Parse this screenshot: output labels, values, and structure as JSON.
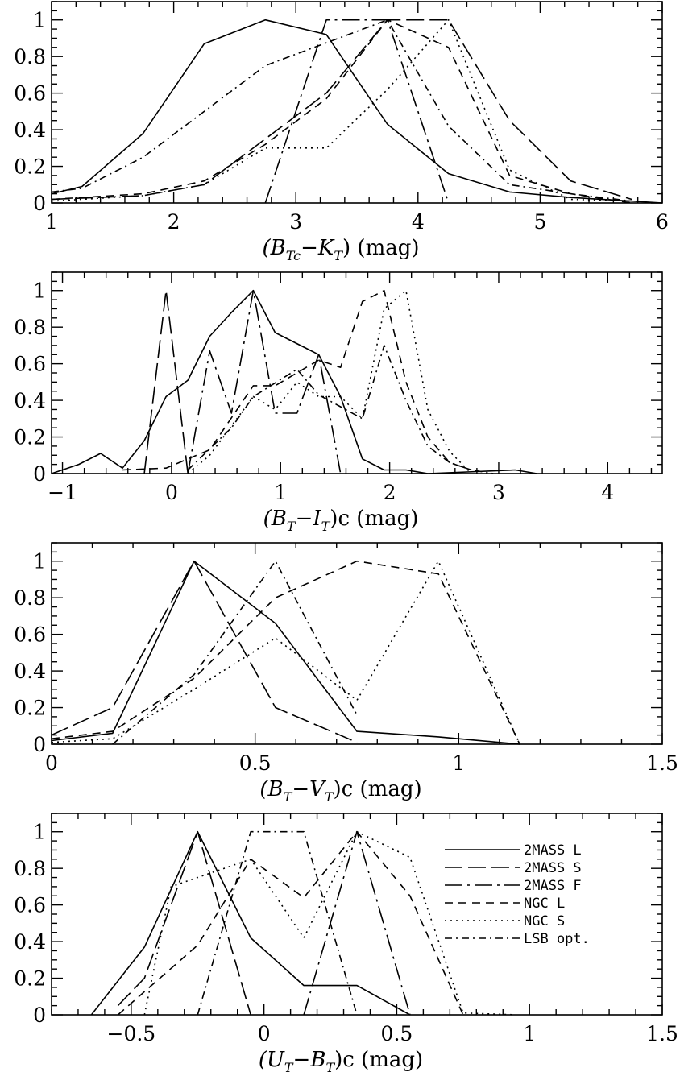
{
  "styles": {
    "2MASS L": "solid",
    "2MASS S": "long-dash",
    "2MASS F": "long-dash-dot",
    "NGC L": "dash",
    "NGC S": "dot",
    "LSB opt.": "dash-dot"
  },
  "legend_labels": [
    "2MASS L",
    "2MASS S",
    "2MASS F",
    "NGC L",
    "NGC S",
    "LSB opt."
  ],
  "chart_data": [
    {
      "type": "line",
      "xlabel_parts": {
        "open": "(B",
        "sub1": "Tc",
        "mid": "−K",
        "sub2": "T",
        "close": ")  (mag)"
      },
      "xlim": [
        1,
        6
      ],
      "ylim": [
        0,
        1.1
      ],
      "xticks": [
        1,
        2,
        3,
        4,
        5,
        6
      ],
      "yticks": [
        0,
        0.2,
        0.4,
        0.6,
        0.8,
        1
      ],
      "ytick_labels": [
        "0",
        "0.2",
        "0.4",
        "0.6",
        "0.8",
        "1"
      ],
      "series": [
        {
          "style": "2MASS L",
          "points": [
            [
              1.0,
              0.05
            ],
            [
              1.25,
              0.09
            ],
            [
              1.75,
              0.38
            ],
            [
              2.25,
              0.87
            ],
            [
              2.75,
              1.0
            ],
            [
              3.25,
              0.92
            ],
            [
              3.75,
              0.43
            ],
            [
              4.25,
              0.16
            ],
            [
              4.75,
              0.06
            ],
            [
              5.25,
              0.03
            ],
            [
              5.75,
              0.01
            ],
            [
              6.0,
              0.0
            ]
          ]
        },
        {
          "style": "2MASS F",
          "points": [
            [
              2.75,
              0.0
            ],
            [
              3.25,
              1.0
            ],
            [
              3.75,
              1.0
            ],
            [
              4.25,
              0.0
            ]
          ]
        },
        {
          "style": "2MASS S",
          "points": [
            [
              1.0,
              0.02
            ],
            [
              1.75,
              0.04
            ],
            [
              2.25,
              0.1
            ],
            [
              2.75,
              0.35
            ],
            [
              3.25,
              0.6
            ],
            [
              3.75,
              1.0
            ],
            [
              4.25,
              1.0
            ],
            [
              4.75,
              0.45
            ],
            [
              5.25,
              0.12
            ],
            [
              5.75,
              0.02
            ]
          ]
        },
        {
          "style": "NGC L",
          "points": [
            [
              1.0,
              0.02
            ],
            [
              1.75,
              0.05
            ],
            [
              2.25,
              0.12
            ],
            [
              2.75,
              0.32
            ],
            [
              3.25,
              0.57
            ],
            [
              3.75,
              1.0
            ],
            [
              4.25,
              0.85
            ],
            [
              4.75,
              0.15
            ],
            [
              5.25,
              0.05
            ],
            [
              5.75,
              0.0
            ]
          ]
        },
        {
          "style": "NGC S",
          "points": [
            [
              1.0,
              0.01
            ],
            [
              1.75,
              0.04
            ],
            [
              2.25,
              0.1
            ],
            [
              2.75,
              0.3
            ],
            [
              3.25,
              0.3
            ],
            [
              3.75,
              0.62
            ],
            [
              4.25,
              1.0
            ],
            [
              4.75,
              0.18
            ],
            [
              5.25,
              0.02
            ],
            [
              5.75,
              0.01
            ]
          ]
        },
        {
          "style": "LSB opt.",
          "points": [
            [
              1.0,
              0.06
            ],
            [
              1.25,
              0.08
            ],
            [
              1.75,
              0.25
            ],
            [
              2.75,
              0.75
            ],
            [
              3.75,
              1.0
            ],
            [
              4.25,
              0.42
            ],
            [
              4.75,
              0.1
            ],
            [
              5.25,
              0.05
            ],
            [
              5.75,
              0.01
            ]
          ]
        }
      ]
    },
    {
      "type": "line",
      "xlabel_parts": {
        "open": "(B",
        "sub1": "T",
        "mid": "−I",
        "sub2": "T",
        "close": ")c  (mag)"
      },
      "xlim": [
        -1.1,
        4.5
      ],
      "ylim": [
        0,
        1.1
      ],
      "xticks": [
        -1,
        0,
        1,
        2,
        3,
        4
      ],
      "xtick_labels": [
        "−1",
        "0",
        "1",
        "2",
        "3",
        "4"
      ],
      "yticks": [
        0,
        0.2,
        0.4,
        0.6,
        0.8,
        1
      ],
      "ytick_labels": [
        "0",
        "0.2",
        "0.4",
        "0.6",
        "0.8",
        "1"
      ],
      "series": [
        {
          "style": "2MASS L",
          "points": [
            [
              -1.1,
              0.0
            ],
            [
              -0.85,
              0.05
            ],
            [
              -0.65,
              0.11
            ],
            [
              -0.45,
              0.03
            ],
            [
              -0.25,
              0.18
            ],
            [
              -0.05,
              0.42
            ],
            [
              0.15,
              0.51
            ],
            [
              0.35,
              0.75
            ],
            [
              0.55,
              0.88
            ],
            [
              0.75,
              1.0
            ],
            [
              0.95,
              0.77
            ],
            [
              1.35,
              0.65
            ],
            [
              1.55,
              0.42
            ],
            [
              1.75,
              0.08
            ],
            [
              1.95,
              0.02
            ],
            [
              2.15,
              0.02
            ],
            [
              2.35,
              0.0
            ],
            [
              3.15,
              0.02
            ],
            [
              3.35,
              0.0
            ]
          ]
        },
        {
          "style": "2MASS S",
          "points": [
            [
              -0.25,
              0.0
            ],
            [
              -0.05,
              1.0
            ],
            [
              0.15,
              0.0
            ]
          ]
        },
        {
          "style": "2MASS F",
          "points": [
            [
              0.15,
              0.0
            ],
            [
              0.35,
              0.67
            ],
            [
              0.55,
              0.33
            ],
            [
              0.75,
              1.0
            ],
            [
              0.95,
              0.33
            ],
            [
              1.15,
              0.33
            ],
            [
              1.35,
              0.65
            ],
            [
              1.55,
              0.0
            ]
          ]
        },
        {
          "style": "NGC L",
          "points": [
            [
              -0.45,
              0.02
            ],
            [
              -0.05,
              0.03
            ],
            [
              0.35,
              0.13
            ],
            [
              0.75,
              0.48
            ],
            [
              0.95,
              0.48
            ],
            [
              1.35,
              0.62
            ],
            [
              1.55,
              0.58
            ],
            [
              1.75,
              0.94
            ],
            [
              1.95,
              1.0
            ],
            [
              2.15,
              0.5
            ],
            [
              2.35,
              0.2
            ],
            [
              2.55,
              0.06
            ],
            [
              2.75,
              0.02
            ]
          ]
        },
        {
          "style": "NGC S",
          "points": [
            [
              0.15,
              0.0
            ],
            [
              0.35,
              0.1
            ],
            [
              0.75,
              0.42
            ],
            [
              0.95,
              0.35
            ],
            [
              1.15,
              0.5
            ],
            [
              1.35,
              0.42
            ],
            [
              1.55,
              0.42
            ],
            [
              1.75,
              0.3
            ],
            [
              1.95,
              0.9
            ],
            [
              2.15,
              1.0
            ],
            [
              2.35,
              0.35
            ],
            [
              2.55,
              0.12
            ],
            [
              2.75,
              0.0
            ]
          ]
        },
        {
          "style": "LSB opt.",
          "points": [
            [
              0.15,
              0.02
            ],
            [
              0.55,
              0.25
            ],
            [
              0.75,
              0.42
            ],
            [
              1.15,
              0.57
            ],
            [
              1.35,
              0.43
            ],
            [
              1.75,
              0.3
            ],
            [
              1.95,
              0.7
            ],
            [
              2.15,
              0.4
            ],
            [
              2.35,
              0.15
            ],
            [
              2.55,
              0.06
            ],
            [
              2.75,
              0.02
            ],
            [
              2.95,
              0.0
            ]
          ]
        }
      ]
    },
    {
      "type": "line",
      "xlabel_parts": {
        "open": "(B",
        "sub1": "T",
        "mid": "−V",
        "sub2": "T",
        "close": ")c  (mag)"
      },
      "xlim": [
        0,
        1.5
      ],
      "ylim": [
        0,
        1.1
      ],
      "xticks": [
        0,
        0.5,
        1,
        1.5
      ],
      "xtick_labels": [
        "0",
        "0.5",
        "1",
        "1.5"
      ],
      "yticks": [
        0,
        0.2,
        0.4,
        0.6,
        0.8,
        1
      ],
      "ytick_labels": [
        "0",
        "0.2",
        "0.4",
        "0.6",
        "0.8",
        "1"
      ],
      "series": [
        {
          "style": "2MASS L",
          "points": [
            [
              0.0,
              0.02
            ],
            [
              0.15,
              0.06
            ],
            [
              0.35,
              1.0
            ],
            [
              0.55,
              0.66
            ],
            [
              0.75,
              0.07
            ],
            [
              0.95,
              0.04
            ],
            [
              1.15,
              0.0
            ]
          ]
        },
        {
          "style": "2MASS S",
          "points": [
            [
              0.0,
              0.05
            ],
            [
              0.15,
              0.2
            ],
            [
              0.35,
              1.0
            ],
            [
              0.55,
              0.2
            ],
            [
              0.75,
              0.01
            ]
          ]
        },
        {
          "style": "NGC L",
          "points": [
            [
              0.0,
              0.03
            ],
            [
              0.15,
              0.07
            ],
            [
              0.35,
              0.36
            ],
            [
              0.55,
              0.8
            ],
            [
              0.75,
              1.0
            ],
            [
              0.95,
              0.93
            ],
            [
              1.15,
              0.0
            ]
          ]
        },
        {
          "style": "NGC S",
          "points": [
            [
              0.0,
              0.01
            ],
            [
              0.15,
              0.03
            ],
            [
              0.35,
              0.3
            ],
            [
              0.55,
              0.58
            ],
            [
              0.75,
              0.24
            ],
            [
              0.95,
              1.0
            ],
            [
              1.15,
              0.0
            ]
          ]
        },
        {
          "style": "LSB opt.",
          "points": [
            [
              0.15,
              0.0
            ],
            [
              0.35,
              0.38
            ],
            [
              0.55,
              1.0
            ],
            [
              0.75,
              0.16
            ]
          ]
        }
      ]
    },
    {
      "type": "line",
      "xlabel_parts": {
        "open": "(U",
        "sub1": "T",
        "mid": "−B",
        "sub2": "T",
        "close": ")c  (mag)"
      },
      "xlim": [
        -0.8,
        1.5
      ],
      "ylim": [
        0,
        1.1
      ],
      "xticks": [
        -0.5,
        0,
        0.5,
        1,
        1.5
      ],
      "xtick_labels": [
        "−0.5",
        "0",
        "0.5",
        "1",
        "1.5"
      ],
      "yticks": [
        0,
        0.2,
        0.4,
        0.6,
        0.8,
        1
      ],
      "ytick_labels": [
        "0",
        "0.2",
        "0.4",
        "0.6",
        "0.8",
        "1"
      ],
      "legend_position": "top-right",
      "series": [
        {
          "style": "2MASS L",
          "points": [
            [
              -0.65,
              0.0
            ],
            [
              -0.45,
              0.37
            ],
            [
              -0.25,
              1.0
            ],
            [
              -0.05,
              0.42
            ],
            [
              0.15,
              0.16
            ],
            [
              0.35,
              0.16
            ],
            [
              0.55,
              0.0
            ]
          ]
        },
        {
          "style": "2MASS S",
          "points": [
            [
              -0.55,
              0.05
            ],
            [
              -0.45,
              0.2
            ],
            [
              -0.25,
              1.0
            ],
            [
              -0.05,
              0.0
            ]
          ]
        },
        {
          "style": "2MASS F",
          "points": [
            [
              0.15,
              0.0
            ],
            [
              0.35,
              1.0
            ],
            [
              0.55,
              0.0
            ]
          ]
        },
        {
          "style": "NGC L",
          "points": [
            [
              -0.55,
              0.0
            ],
            [
              -0.25,
              0.38
            ],
            [
              -0.05,
              0.85
            ],
            [
              0.15,
              0.64
            ],
            [
              0.35,
              1.0
            ],
            [
              0.55,
              0.65
            ],
            [
              0.75,
              0.0
            ]
          ]
        },
        {
          "style": "NGC S",
          "points": [
            [
              -0.45,
              0.0
            ],
            [
              -0.35,
              0.7
            ],
            [
              -0.15,
              0.8
            ],
            [
              -0.05,
              0.85
            ],
            [
              0.15,
              0.42
            ],
            [
              0.35,
              1.0
            ],
            [
              0.55,
              0.86
            ],
            [
              0.75,
              0.01
            ],
            [
              0.95,
              0.0
            ]
          ]
        },
        {
          "style": "LSB opt.",
          "points": [
            [
              -0.25,
              0.0
            ],
            [
              -0.05,
              1.0
            ],
            [
              0.15,
              1.0
            ],
            [
              0.35,
              0.0
            ]
          ]
        }
      ]
    }
  ]
}
